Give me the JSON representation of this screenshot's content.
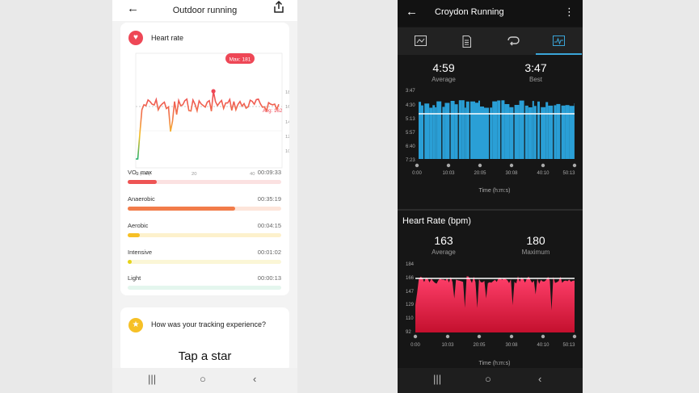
{
  "left": {
    "title": "Outdoor running",
    "heart_rate": {
      "title": "Heart rate",
      "max_label": "Max: 181",
      "avg_label": "Avg: 162",
      "x_ticks": [
        "0 (min)",
        "20",
        "40"
      ],
      "y_ticks": [
        "180",
        "160",
        "140",
        "120",
        "100"
      ]
    },
    "zones": [
      {
        "name": "VO₂ max",
        "time": "00:09:33",
        "fraction": 0.19,
        "color": "#ee5454",
        "track": "#fbe1e1"
      },
      {
        "name": "Anaerobic",
        "time": "00:35:19",
        "fraction": 0.7,
        "color": "#f27c4a",
        "track": "#fde5da"
      },
      {
        "name": "Aerobic",
        "time": "00:04:15",
        "fraction": 0.08,
        "color": "#f6c026",
        "track": "#fdf1cc"
      },
      {
        "name": "Intensive",
        "time": "00:01:02",
        "fraction": 0.02,
        "color": "#e5d319",
        "track": "#fbf6d6"
      },
      {
        "name": "Light",
        "time": "00:00:13",
        "fraction": 0.0,
        "color": "#7fd9b0",
        "track": "#e4f6ee"
      }
    ],
    "rating": {
      "question": "How was your tracking experience?",
      "cta": "Tap a star"
    }
  },
  "right": {
    "title": "Croydon Running",
    "pace": {
      "average_value": "4:59",
      "average_label": "Average",
      "best_value": "3:47",
      "best_label": "Best",
      "y_ticks": [
        "3:47",
        "4:30",
        "5:13",
        "5:57",
        "6:40",
        "7:23"
      ],
      "x_ticks": [
        "0:00",
        "10:03",
        "20:05",
        "30:08",
        "40:10",
        "50:13"
      ],
      "x_label": "Time (h:m:s)"
    },
    "heart_rate": {
      "title": "Heart Rate (bpm)",
      "average_value": "163",
      "average_label": "Average",
      "max_value": "180",
      "max_label": "Maximum",
      "y_ticks": [
        "184",
        "166",
        "147",
        "129",
        "110",
        "92"
      ],
      "x_ticks": [
        "0:00",
        "10:03",
        "20:05",
        "30:08",
        "40:10",
        "50:13"
      ],
      "x_label": "Time (h:m:s)"
    }
  },
  "nav": {
    "recents": "|||",
    "home": "○",
    "back": "‹"
  }
}
